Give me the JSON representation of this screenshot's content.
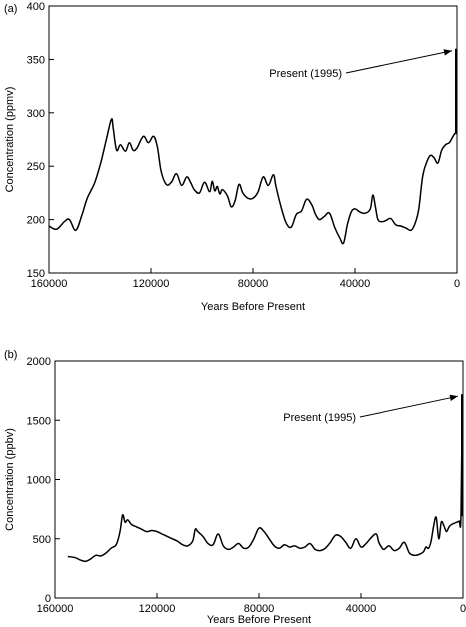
{
  "chart_data": [
    {
      "type": "line",
      "panel_label": "(a)",
      "xlabel": "Years Before Present",
      "ylabel": "Concentration (ppmv)",
      "xlim": [
        160000,
        0
      ],
      "ylim": [
        150,
        400
      ],
      "xticks": [
        160000,
        120000,
        80000,
        40000,
        0
      ],
      "xtick_labels": [
        "160000",
        "120000",
        "80000",
        "40000",
        "0"
      ],
      "yticks": [
        150,
        200,
        250,
        300,
        350,
        400
      ],
      "ytick_labels": [
        "150",
        "200",
        "250",
        "300",
        "350",
        "400"
      ],
      "grid": false,
      "series": [
        {
          "x": [
            160000,
            157000,
            154000,
            152000,
            149500,
            147000,
            145000,
            142000,
            139500,
            137500,
            135500,
            134800,
            133500,
            132000,
            130000,
            128500,
            127000,
            125500,
            123000,
            121000,
            119000,
            117500,
            116000,
            114000,
            112000,
            110000,
            108000,
            106000,
            104500,
            103000,
            101000,
            99000,
            97000,
            96000,
            95000,
            94000,
            93000,
            92000,
            90000,
            88500,
            87000,
            85500,
            84000,
            82000,
            80000,
            78000,
            76000,
            74000,
            72000,
            71000,
            69000,
            67000,
            65000,
            63000,
            61000,
            59000,
            57000,
            55500,
            54000,
            52000,
            50000,
            48000,
            46000,
            44500,
            43000,
            41500,
            40000,
            38000,
            36000,
            34000,
            33000,
            32000,
            31000,
            29500,
            28000,
            26000,
            24000,
            22000,
            20000,
            18000,
            16500,
            15000,
            13500,
            12000,
            10500,
            9000,
            7500,
            6000,
            4500,
            3000,
            2000,
            1000,
            200
          ],
          "y": [
            194,
            191,
            198,
            200,
            190,
            205,
            220,
            235,
            255,
            275,
            294,
            285,
            265,
            270,
            264,
            272,
            265,
            267,
            278,
            272,
            278,
            268,
            245,
            233,
            235,
            243,
            232,
            240,
            235,
            228,
            225,
            235,
            226,
            236,
            227,
            231,
            224,
            228,
            222,
            212,
            218,
            233,
            225,
            220,
            220,
            226,
            240,
            232,
            242,
            231,
            212,
            197,
            193,
            205,
            208,
            219,
            214,
            205,
            200,
            203,
            206,
            193,
            183,
            178,
            195,
            207,
            210,
            207,
            206,
            210,
            223,
            212,
            200,
            198,
            199,
            201,
            195,
            194,
            192,
            190,
            196,
            210,
            240,
            253,
            260,
            258,
            253,
            265,
            270,
            272,
            276,
            280,
            282
          ]
        }
      ],
      "annotations": [
        {
          "text": "Present (1995)",
          "point": [
            0,
            360
          ],
          "value_at_present": 360
        }
      ]
    },
    {
      "type": "line",
      "panel_label": "(b)",
      "xlabel": "Years Before Present",
      "ylabel": "Concentration (ppbv)",
      "xlim": [
        160000,
        0
      ],
      "ylim": [
        0,
        2000
      ],
      "xticks": [
        160000,
        120000,
        80000,
        40000,
        0
      ],
      "xtick_labels": [
        "160000",
        "120000",
        "80000",
        "40000",
        "0"
      ],
      "yticks": [
        0,
        500,
        1000,
        1500,
        2000
      ],
      "ytick_labels": [
        "0",
        "500",
        "1000",
        "1500",
        "2000"
      ],
      "grid": false,
      "series": [
        {
          "x": [
            155000,
            152000,
            150000,
            148000,
            146000,
            144000,
            142000,
            140000,
            138000,
            136000,
            134500,
            133500,
            132500,
            131500,
            130000,
            128000,
            126000,
            124000,
            122000,
            120000,
            118000,
            116000,
            114000,
            112000,
            110000,
            108000,
            106000,
            105000,
            104000,
            102000,
            100000,
            98000,
            96000,
            94000,
            92000,
            90000,
            88000,
            86000,
            84000,
            82000,
            80000,
            78000,
            76000,
            74000,
            72000,
            70000,
            68000,
            66000,
            64000,
            62000,
            60000,
            58000,
            56000,
            54000,
            52000,
            50000,
            48000,
            46000,
            44000,
            42000,
            40000,
            38000,
            36000,
            34000,
            33000,
            32000,
            31000,
            29000,
            27000,
            25000,
            23000,
            21000,
            19000,
            17000,
            15500,
            14500,
            13500,
            12500,
            11500,
            10500,
            9500,
            8500,
            7500,
            6500,
            5500,
            4500,
            3500,
            2500,
            1500,
            800,
            300
          ],
          "y": [
            350,
            340,
            320,
            310,
            330,
            360,
            355,
            380,
            420,
            450,
            560,
            700,
            640,
            660,
            620,
            600,
            580,
            560,
            570,
            560,
            540,
            520,
            500,
            480,
            450,
            440,
            480,
            580,
            560,
            520,
            460,
            450,
            540,
            440,
            410,
            430,
            460,
            420,
            430,
            500,
            590,
            560,
            500,
            440,
            420,
            450,
            430,
            440,
            420,
            430,
            460,
            410,
            400,
            420,
            470,
            530,
            520,
            470,
            420,
            500,
            430,
            460,
            510,
            540,
            470,
            430,
            410,
            440,
            400,
            420,
            470,
            380,
            360,
            370,
            390,
            430,
            420,
            480,
            610,
            680,
            500,
            640,
            610,
            560,
            600,
            620,
            630,
            640,
            650,
            690,
            1700
          ]
        }
      ],
      "annotations": [
        {
          "text": "Present (1995)",
          "point": [
            0,
            1720
          ],
          "value_at_present": 1720
        }
      ]
    }
  ]
}
